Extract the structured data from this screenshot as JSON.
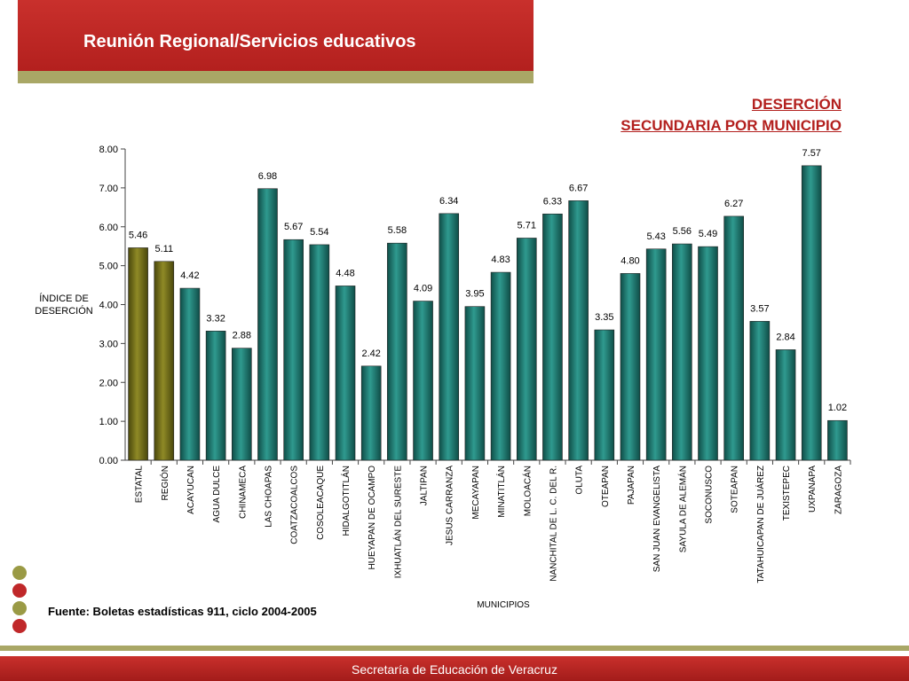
{
  "header": {
    "title": "Reunión Regional/Servicios educativos"
  },
  "footer": {
    "text": "Secretaría de Educación de Veracruz",
    "source": "Fuente: Boletas estadísticas 911, ciclo 2004-2005"
  },
  "colors": {
    "header_red": "#c0282a",
    "olive": "#a9a766",
    "bar_teal": "#1f7a72",
    "bar_olive": "#6e6a15",
    "title_red": "#b3201e"
  },
  "chart_data": {
    "type": "bar",
    "title": [
      "DESERCIÓN",
      "SECUNDARIA POR MUNICIPIO"
    ],
    "ylabel": [
      "ÍNDICE DE",
      "DESERCIÓN"
    ],
    "xlabel": "MUNICIPIOS",
    "ylim": [
      0,
      8
    ],
    "yticks": [
      "0.00",
      "1.00",
      "2.00",
      "3.00",
      "4.00",
      "5.00",
      "6.00",
      "7.00",
      "8.00"
    ],
    "categories": [
      "ESTATAL",
      "REGIÓN",
      "ACAYUCAN",
      "AGUA DULCE",
      "CHINAMECA",
      "LAS CHOAPAS",
      "COATZACOALCOS",
      "COSOLEACAQUE",
      "HIDALGOTITLÁN",
      "HUEYAPAN DE OCAMPO",
      "IXHUATLÁN DEL SURESTE",
      "JALTIPAN",
      "JESUS CARRANZA",
      "MECAYAPAN",
      "MINATITLÁN",
      "MOLOACÁN",
      "NANCHITAL DE L. C. DEL R.",
      "OLUTA",
      "OTEAPAN",
      "PAJAPAN",
      "SAN JUAN EVANGELISTA",
      "SAYULA DE ALEMÁN",
      "SOCONUSCO",
      "SOTEAPAN",
      "TATAHUICAPAN DE JUÁREZ",
      "TEXISTEPEC",
      "UXPANAPA",
      "ZARAGOZA"
    ],
    "values": [
      5.46,
      5.11,
      4.42,
      3.32,
      2.88,
      6.98,
      5.67,
      5.54,
      4.48,
      2.42,
      5.58,
      4.09,
      6.34,
      3.95,
      4.83,
      5.71,
      6.33,
      6.67,
      3.35,
      4.8,
      5.43,
      5.56,
      5.49,
      6.27,
      3.57,
      2.84,
      7.57,
      1.02
    ],
    "value_labels": [
      "5.46",
      "5.11",
      "4.42",
      "3.32",
      "2.88",
      "6.98",
      "5.67",
      "5.54",
      "4.48",
      "2.42",
      "5.58",
      "4.09",
      "6.34",
      "3.95",
      "4.83",
      "5.71",
      "6.33",
      "6.67",
      "3.35",
      "4.80",
      "5.43",
      "5.56",
      "5.49",
      "6.27",
      "3.57",
      "2.84",
      "7.57",
      "1.02"
    ],
    "highlight_categories": [
      "ESTATAL",
      "REGIÓN"
    ]
  }
}
